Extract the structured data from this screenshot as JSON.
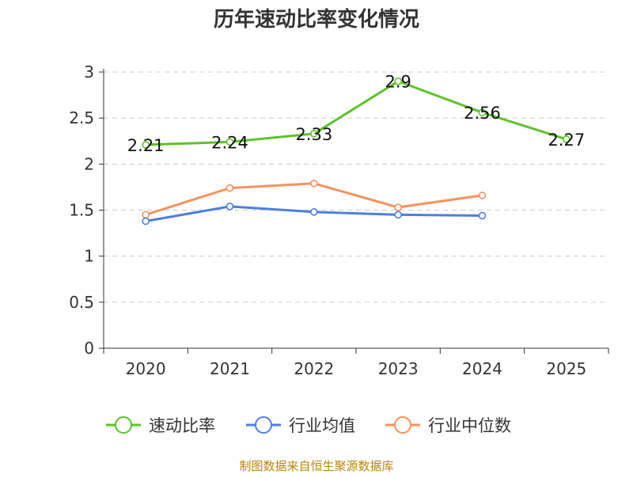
{
  "chart_data": {
    "type": "line",
    "title": "历年速动比率变化情况",
    "categories": [
      "2020",
      "2021",
      "2022",
      "2023",
      "2024",
      "2025"
    ],
    "ylim": [
      0,
      3
    ],
    "yticks": [
      "0",
      "0.5",
      "1",
      "1.5",
      "2",
      "2.5",
      "3"
    ],
    "xlabel": "",
    "ylabel": "",
    "grid": "horizontal-dashed",
    "legend_position": "bottom",
    "series": [
      {
        "name": "速动比率",
        "color": "#5dc22c",
        "values": [
          2.21,
          2.24,
          2.33,
          2.9,
          2.56,
          2.27
        ],
        "labels": [
          "2.21",
          "2.24",
          "2.33",
          "2.9",
          "2.56",
          "2.27"
        ]
      },
      {
        "name": "行业均值",
        "color": "#4f7fdc",
        "values": [
          1.38,
          1.54,
          1.48,
          1.45,
          1.44,
          null
        ]
      },
      {
        "name": "行业中位数",
        "color": "#f5925e",
        "values": [
          1.45,
          1.74,
          1.79,
          1.53,
          1.66,
          null
        ]
      }
    ]
  },
  "footer": {
    "source": "制图数据来自恒生聚源数据库"
  }
}
